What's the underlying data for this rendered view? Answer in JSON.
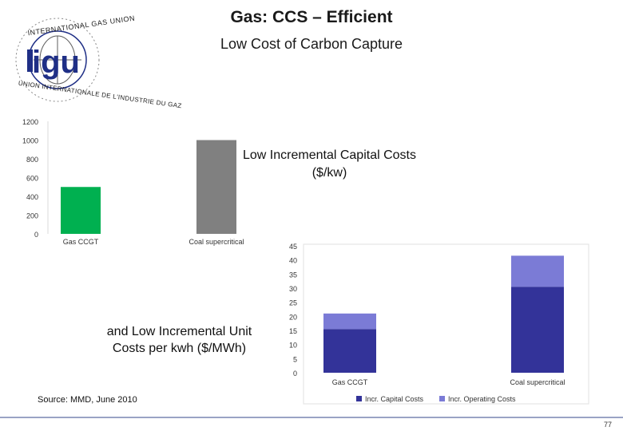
{
  "slide": {
    "title": "Gas: CCS – Efficient",
    "subtitle": "Low Cost of Carbon Capture",
    "caption_capital": "Low Incremental Capital Costs ($/kw)",
    "caption_unit": "and Low Incremental Unit Costs per kwh ($/MWh)",
    "source": "Source: MMD, June 2010",
    "page_number": "77"
  },
  "logo": {
    "text_top": "INTERNATIONAL GAS UNION",
    "text_bottom": "UNION INTERNATIONALE DE L'INDUSTRIE DU GAZ",
    "mark": "igu",
    "colors": {
      "blue": "#1f2f86",
      "grey": "#5c5c5c"
    }
  },
  "chart_data": [
    {
      "type": "bar",
      "categories": [
        "Gas CCGT",
        "Coal supercritical"
      ],
      "values": [
        500,
        1000
      ],
      "colors": [
        "#00b050",
        "#808080"
      ],
      "ylim": [
        0,
        1200
      ],
      "yticks": [
        0,
        200,
        400,
        600,
        800,
        1000,
        1200
      ],
      "title": "",
      "xlabel": "",
      "ylabel": ""
    },
    {
      "type": "bar",
      "stacked": true,
      "categories": [
        "Gas CCGT",
        "Coal supercritical"
      ],
      "series": [
        {
          "name": "Incr. Capital Costs",
          "values": [
            15.5,
            30.5
          ],
          "color": "#333399"
        },
        {
          "name": "Incr. Operating Costs",
          "values": [
            5.5,
            11.0
          ],
          "color": "#7b7bd6"
        }
      ],
      "ylim": [
        0,
        45
      ],
      "yticks": [
        0,
        5,
        10,
        15,
        20,
        25,
        30,
        35,
        40,
        45
      ],
      "legend": "bottom",
      "title": "",
      "xlabel": "",
      "ylabel": ""
    }
  ]
}
